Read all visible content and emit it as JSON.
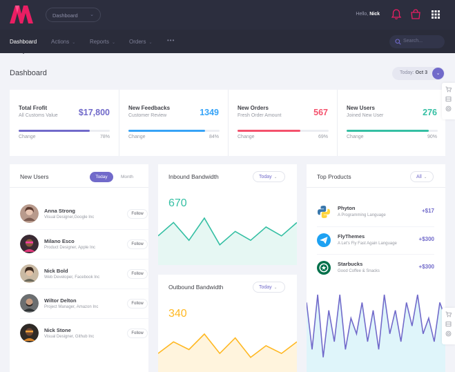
{
  "header": {
    "dashboard_select": "Dashboard",
    "hello_prefix": "Hello,",
    "user_name": "Nick"
  },
  "nav": {
    "items": [
      {
        "label": "Dashboard",
        "active": true
      },
      {
        "label": "Actions"
      },
      {
        "label": "Reports"
      },
      {
        "label": "Orders"
      }
    ],
    "more": "•••",
    "search_placeholder": "Search..."
  },
  "page": {
    "title": "Dashboard",
    "today_label": "Today:",
    "today_value": "Oct 3"
  },
  "stats": [
    {
      "title": "Total Frofit",
      "subtitle": "All Customs Value",
      "value": "$17,800",
      "change_label": "Change",
      "percent": "78%",
      "progress": 78,
      "color": "#716aca"
    },
    {
      "title": "New Feedbacks",
      "subtitle": "Customer Review",
      "value": "1349",
      "change_label": "Change",
      "percent": "84%",
      "progress": 84,
      "color": "#36a3f7"
    },
    {
      "title": "New Orders",
      "subtitle": "Fresh Order Amount",
      "value": "567",
      "change_label": "Change",
      "percent": "69%",
      "progress": 69,
      "color": "#f4516c"
    },
    {
      "title": "New Users",
      "subtitle": "Joined New User",
      "value": "276",
      "change_label": "Change",
      "percent": "90%",
      "progress": 90,
      "color": "#34bfa3"
    }
  ],
  "new_users": {
    "title": "New Users",
    "tab_today": "Today",
    "tab_month": "Month",
    "follow_label": "Follow",
    "items": [
      {
        "name": "Anna Strong",
        "role": "Visual Designer,Google Inc"
      },
      {
        "name": "Milano Esco",
        "role": "Product Designer, Apple Inc"
      },
      {
        "name": "Nick Bold",
        "role": "Web Developer, Facebook Inc"
      },
      {
        "name": "Wiltor Delton",
        "role": "Project Manager, Amazon Inc"
      },
      {
        "name": "Nick Stone",
        "role": "Visual Designer, Github Inc"
      }
    ]
  },
  "inbound": {
    "title": "Inbound Bandwidth",
    "dropdown": "Today",
    "value": "670",
    "color": "#34bfa3",
    "chart_data": {
      "type": "area",
      "values": [
        5,
        8,
        4,
        9,
        3,
        6,
        4,
        7,
        5,
        8
      ]
    }
  },
  "outbound": {
    "title": "Outbound Bandwidth",
    "dropdown": "Today",
    "value": "340",
    "color": "#ffb822",
    "chart_data": {
      "type": "area",
      "values": [
        3,
        6,
        4,
        8,
        3,
        7,
        2,
        5,
        3,
        6
      ]
    }
  },
  "top_products": {
    "title": "Top Products",
    "dropdown": "All",
    "items": [
      {
        "name": "Phyton",
        "desc": "A Programming Language",
        "price": "+$17",
        "icon": "python-icon"
      },
      {
        "name": "FlyThemes",
        "desc": "A Let's Fly Fast Again Language",
        "price": "+$300",
        "icon": "paper-plane-icon"
      },
      {
        "name": "Starbucks",
        "desc": "Good Coffee & Snacks",
        "price": "+$300",
        "icon": "starbucks-icon"
      }
    ],
    "color": "#716aca",
    "chart_data": {
      "type": "area",
      "values": [
        8,
        2,
        9,
        1,
        7,
        3,
        9,
        2,
        6,
        4,
        8,
        3,
        7,
        2,
        9,
        4,
        7,
        3,
        8,
        5,
        9,
        4,
        6,
        3,
        8,
        6
      ]
    }
  }
}
